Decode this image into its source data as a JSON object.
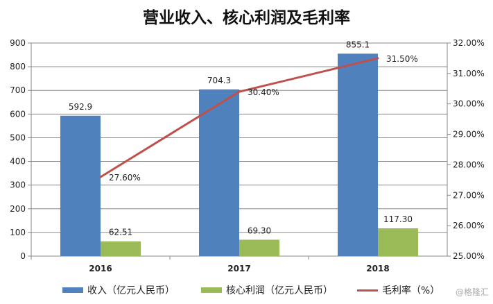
{
  "chart_data": {
    "type": "bar+line",
    "title": "营业收入、核心利润及毛利率",
    "categories": [
      "2016",
      "2017",
      "2018"
    ],
    "series": [
      {
        "name": "收入（亿元人民币）",
        "type": "bar",
        "axis": "left",
        "color": "#4F81BD",
        "values": [
          592.9,
          704.3,
          855.1
        ],
        "labels": [
          "592.9",
          "704.3",
          "855.1"
        ]
      },
      {
        "name": "核心利润（亿元人民币）",
        "type": "bar",
        "axis": "left",
        "color": "#9BBB59",
        "values": [
          62.51,
          69.3,
          117.3
        ],
        "labels": [
          "62.51",
          "69.30",
          "117.30"
        ]
      },
      {
        "name": "毛利率（%）",
        "type": "line",
        "axis": "right",
        "color": "#C0504D",
        "values": [
          27.6,
          30.4,
          31.5
        ],
        "labels": [
          "27.60%",
          "30.40%",
          "31.50%"
        ]
      }
    ],
    "ylim": [
      0,
      900
    ],
    "yticks": [
      "0",
      "100",
      "200",
      "300",
      "400",
      "500",
      "600",
      "700",
      "800",
      "900"
    ],
    "y2lim": [
      25,
      32
    ],
    "y2ticks": [
      "25.00%",
      "26.00%",
      "27.00%",
      "28.00%",
      "29.00%",
      "30.00%",
      "31.00%",
      "32.00%"
    ],
    "grid": true,
    "legend": "bottom"
  },
  "watermark": "@格隆汇"
}
